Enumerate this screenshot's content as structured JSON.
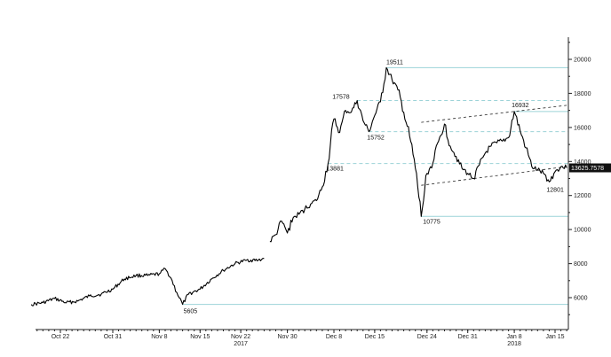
{
  "chart_data": {
    "type": "line",
    "title": "",
    "xlabel": "",
    "ylabel": "",
    "ylim": [
      4000,
      21000
    ],
    "y_axis_side": "right",
    "grid": false,
    "y_ticks": [
      6000,
      8000,
      10000,
      12000,
      14000,
      16000,
      18000,
      20000
    ],
    "x_ticks": [
      {
        "date": "2017-10-22",
        "label": "Oct 22"
      },
      {
        "date": "2017-10-31",
        "label": "Oct 31"
      },
      {
        "date": "2017-11-08",
        "label": "Nov 8"
      },
      {
        "date": "2017-11-15",
        "label": "Nov 15"
      },
      {
        "date": "2017-11-22",
        "label": "Nov 22"
      },
      {
        "date": "2017-11-30",
        "label": "Nov 30"
      },
      {
        "date": "2017-12-08",
        "label": "Dec 8"
      },
      {
        "date": "2017-12-15",
        "label": "Dec 15"
      },
      {
        "date": "2017-12-24",
        "label": "Dec 24"
      },
      {
        "date": "2017-12-31",
        "label": "Dec 31"
      },
      {
        "date": "2018-01-08",
        "label": "Jan 8"
      },
      {
        "date": "2018-01-15",
        "label": "Jan 15"
      }
    ],
    "year_labels": [
      {
        "date": "2017-11-22",
        "label": "2017"
      },
      {
        "date": "2018-01-08",
        "label": "2018"
      }
    ],
    "last_value_label": "13625.7578",
    "series": [
      {
        "x": [
          "2017-10-17",
          "2017-10-19",
          "2017-10-21",
          "2017-10-23",
          "2017-10-25",
          "2017-10-27",
          "2017-10-29",
          "2017-10-31",
          "2017-11-02",
          "2017-11-04",
          "2017-11-06",
          "2017-11-08",
          "2017-11-09",
          "2017-11-10",
          "2017-11-11",
          "2017-11-12",
          "2017-11-13",
          "2017-11-15",
          "2017-11-17",
          "2017-11-19",
          "2017-11-21",
          "2017-11-23",
          "2017-11-25",
          "2017-11-26"
        ],
        "values": [
          5600,
          5700,
          5950,
          5700,
          5800,
          6100,
          6200,
          6500,
          7100,
          7300,
          7300,
          7400,
          7700,
          7150,
          6300,
          5605,
          6200,
          6500,
          7100,
          7600,
          8000,
          8200,
          8200,
          8300
        ]
      },
      {
        "x": [
          "2017-11-27",
          "2017-11-28",
          "2017-11-29",
          "2017-11-30",
          "2017-12-01",
          "2017-12-02",
          "2017-12-03",
          "2017-12-04",
          "2017-12-05",
          "2017-12-06",
          "2017-12-07",
          "2017-12-08",
          "2017-12-09",
          "2017-12-10",
          "2017-12-11",
          "2017-12-12",
          "2017-12-13",
          "2017-12-14",
          "2017-12-15",
          "2017-12-16",
          "2017-12-17",
          "2017-12-18",
          "2017-12-19",
          "2017-12-20",
          "2017-12-21",
          "2017-12-22",
          "2017-12-23",
          "2017-12-24",
          "2017-12-25",
          "2017-12-26",
          "2017-12-27",
          "2017-12-28",
          "2017-12-29",
          "2017-12-30",
          "2017-12-31",
          "2018-01-01",
          "2018-01-02",
          "2018-01-03",
          "2018-01-04",
          "2018-01-05",
          "2018-01-06",
          "2018-01-07",
          "2018-01-08",
          "2018-01-09",
          "2018-01-10",
          "2018-01-11",
          "2018-01-12",
          "2018-01-13",
          "2018-01-14",
          "2018-01-15",
          "2018-01-16",
          "2018-01-17"
        ],
        "values": [
          9300,
          9700,
          10500,
          9800,
          10700,
          10900,
          11200,
          11500,
          11700,
          12500,
          13881,
          16500,
          15700,
          17000,
          16900,
          17578,
          16400,
          15752,
          16700,
          17500,
          19511,
          18800,
          18200,
          16900,
          15500,
          13600,
          10775,
          13300,
          13900,
          15200,
          16200,
          14900,
          14300,
          13600,
          13300,
          13000,
          13800,
          14500,
          14900,
          15100,
          15200,
          15400,
          16932,
          15800,
          14800,
          13700,
          13500,
          13300,
          12801,
          13400,
          13700,
          13625.7578
        ]
      }
    ],
    "annotations": [
      {
        "text": "19511",
        "date": "2017-12-17",
        "value": 19511
      },
      {
        "text": "17578",
        "date": "2017-12-12",
        "value": 17578
      },
      {
        "text": "15752",
        "date": "2017-12-14",
        "value": 15752
      },
      {
        "text": "13881",
        "date": "2017-12-07",
        "value": 13881
      },
      {
        "text": "10775",
        "date": "2017-12-23",
        "value": 10775
      },
      {
        "text": "16932",
        "date": "2018-01-08",
        "value": 16932
      },
      {
        "text": "12801",
        "date": "2018-01-14",
        "value": 12801
      },
      {
        "text": "5605",
        "date": "2017-11-12",
        "value": 5605
      }
    ],
    "horizontal_levels": [
      {
        "value": 19511,
        "from": "2017-12-17",
        "dashed": false
      },
      {
        "value": 17578,
        "from": "2017-12-12",
        "dashed": true
      },
      {
        "value": 16932,
        "from": "2018-01-08",
        "dashed": false
      },
      {
        "value": 15752,
        "from": "2017-12-14",
        "dashed": true
      },
      {
        "value": 13881,
        "from": "2017-12-07",
        "dashed": true
      },
      {
        "value": 10775,
        "from": "2017-12-23",
        "dashed": false
      },
      {
        "value": 5605,
        "from": "2017-11-12",
        "dashed": false
      }
    ],
    "trend_channel": [
      {
        "from": {
          "date": "2017-12-23",
          "value": 16300
        },
        "to": {
          "date": "2018-01-17",
          "value": 17300
        }
      },
      {
        "from": {
          "date": "2017-12-23",
          "value": 12600
        },
        "to": {
          "date": "2018-01-17",
          "value": 13700
        }
      }
    ]
  }
}
